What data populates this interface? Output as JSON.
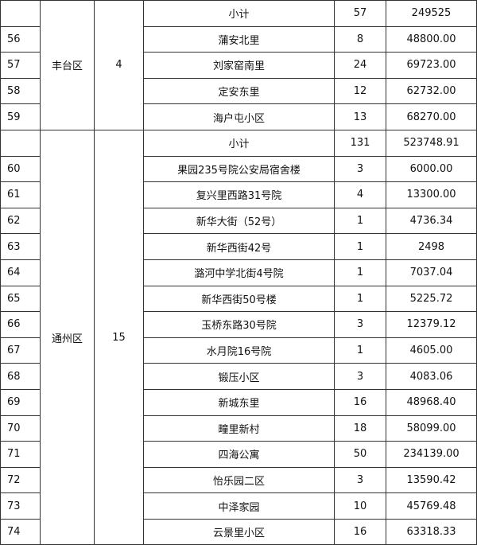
{
  "table": {
    "groups": [
      {
        "district": "丰台区",
        "count": "4",
        "subtotal": {
          "label": "小计",
          "qty": "57",
          "amount": "249525"
        },
        "rows": [
          [
            "56",
            "蒲安北里",
            "8",
            "48800.00"
          ],
          [
            "57",
            "刘家窑南里",
            "24",
            "69723.00"
          ],
          [
            "58",
            "定安东里",
            "12",
            "62732.00"
          ],
          [
            "59",
            "海户屯小区",
            "13",
            "68270.00"
          ]
        ]
      },
      {
        "district": "通州区",
        "count": "15",
        "subtotal": {
          "label": "小计",
          "qty": "131",
          "amount": "523748.91"
        },
        "rows": [
          [
            "60",
            "果园235号院公安局宿舍楼",
            "3",
            "6000.00"
          ],
          [
            "61",
            "复兴里西路31号院",
            "4",
            "13300.00"
          ],
          [
            "62",
            "新华大街（52号）",
            "1",
            "4736.34"
          ],
          [
            "63",
            "新华西街42号",
            "1",
            "2498"
          ],
          [
            "64",
            "潞河中学北街4号院",
            "1",
            "7037.04"
          ],
          [
            "65",
            "新华西街50号楼",
            "1",
            "5225.72"
          ],
          [
            "66",
            "玉桥东路30号院",
            "3",
            "12379.12"
          ],
          [
            "67",
            "水月院16号院",
            "1",
            "4605.00"
          ],
          [
            "68",
            "锻压小区",
            "3",
            "4083.06"
          ],
          [
            "69",
            "新城东里",
            "16",
            "48968.40"
          ],
          [
            "70",
            "疃里新村",
            "18",
            "58099.00"
          ],
          [
            "71",
            "四海公寓",
            "50",
            "234139.00"
          ],
          [
            "72",
            "怡乐园二区",
            "3",
            "13590.42"
          ],
          [
            "73",
            "中泽家园",
            "10",
            "45769.48"
          ],
          [
            "74",
            "云景里小区",
            "16",
            "63318.33"
          ]
        ]
      }
    ]
  }
}
